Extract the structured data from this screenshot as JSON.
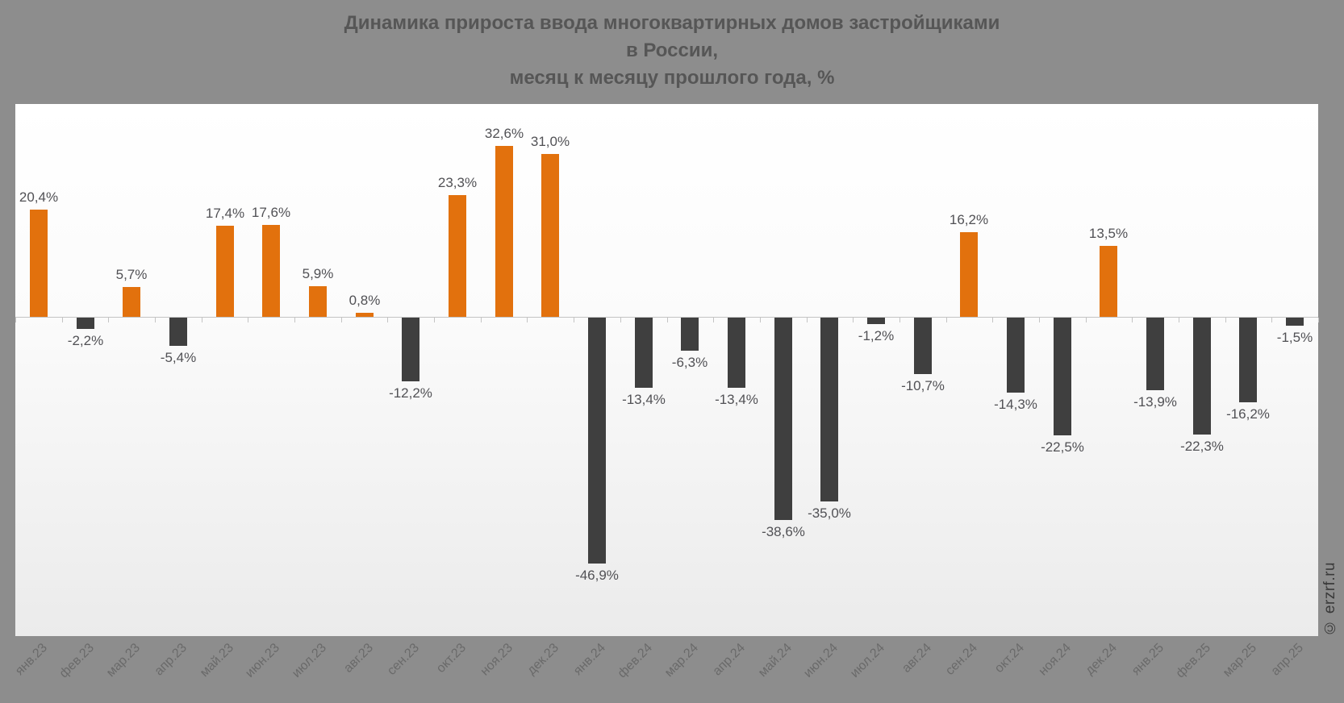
{
  "title": {
    "line1": "Динамика прироста ввода многоквартирных домов застройщиками",
    "line2": "в России,",
    "line3": "месяц к месяцу прошлого года, %"
  },
  "watermark": "© erzrf.ru",
  "colors": {
    "positive_bar": "#e2710d",
    "negative_bar": "#3f3f3f",
    "canvas_background": "#8d8d8d",
    "plot_background_top": "#ffffff",
    "plot_background_bottom": "#ebebeb",
    "axis_line": "#c4c4c4",
    "value_label": "#515155",
    "axis_label": "#6a6a6a",
    "title_text": "#565656",
    "watermark_text": "#3a3a3a"
  },
  "chart_data": {
    "type": "bar",
    "title": "Динамика прироста ввода многоквартирных домов застройщиками в России, месяц к месяцу прошлого года, %",
    "xlabel": "",
    "ylabel": "",
    "ylim": [
      -60,
      40
    ],
    "grid": false,
    "legend": false,
    "categories": [
      "янв.23",
      "фев.23",
      "мар.23",
      "апр.23",
      "май.23",
      "июн.23",
      "июл.23",
      "авг.23",
      "сен.23",
      "окт.23",
      "ноя.23",
      "дек.23",
      "янв.24",
      "фев.24",
      "мар.24",
      "апр.24",
      "май.24",
      "июн.24",
      "июл.24",
      "авг.24",
      "сен.24",
      "окт.24",
      "ноя.24",
      "дек.24",
      "янв.25",
      "фев.25",
      "мар.25",
      "апр.25"
    ],
    "values": [
      20.4,
      -2.2,
      5.7,
      -5.4,
      17.4,
      17.6,
      5.9,
      0.8,
      -12.2,
      23.3,
      32.6,
      31.0,
      -46.9,
      -13.4,
      -6.3,
      -13.4,
      -38.6,
      -35.0,
      -1.2,
      -10.7,
      16.2,
      -14.3,
      -22.5,
      13.5,
      -13.9,
      -22.3,
      -16.2,
      -1.5
    ],
    "labels": [
      "20,4%",
      "-2,2%",
      "5,7%",
      "-5,4%",
      "17,4%",
      "17,6%",
      "5,9%",
      "0,8%",
      "-12,2%",
      "23,3%",
      "32,6%",
      "31,0%",
      "-46,9%",
      "-13,4%",
      "-6,3%",
      "-13,4%",
      "-38,6%",
      "-35,0%",
      "-1,2%",
      "-10,7%",
      "16,2%",
      "-14,3%",
      "-22,5%",
      "13,5%",
      "-13,9%",
      "-22,3%",
      "-16,2%",
      "-1,5%"
    ]
  }
}
